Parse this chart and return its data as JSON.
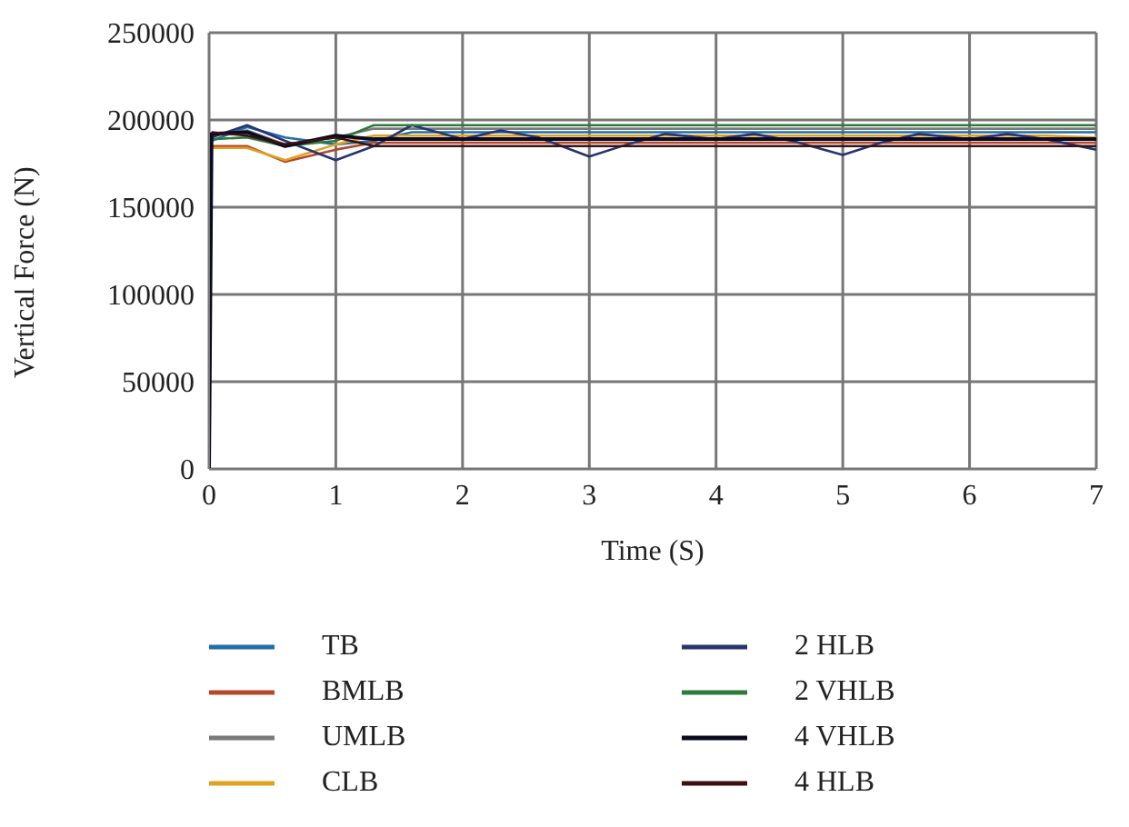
{
  "chart_data": {
    "type": "line",
    "xlabel": "Time (S)",
    "ylabel": "Vertical Force (N)",
    "x": [
      0,
      0.02,
      0.3,
      0.6,
      1.0,
      1.3,
      1.6,
      2.0,
      2.3,
      2.6,
      3.0,
      3.3,
      3.6,
      4.0,
      4.3,
      4.6,
      5.0,
      5.3,
      5.6,
      6.0,
      6.3,
      6.6,
      7.0
    ],
    "series": [
      {
        "name": "TB",
        "color": "#1f6fa8",
        "values": [
          null,
          188000,
          196000,
          190000,
          186000,
          188000,
          193000,
          193000,
          193000,
          193000,
          193000,
          193000,
          193000,
          193000,
          193000,
          193000,
          193000,
          193000,
          193000,
          193000,
          193000,
          193000,
          193000
        ]
      },
      {
        "name": "BMLB",
        "color": "#b5482a",
        "values": [
          null,
          185000,
          185000,
          176000,
          183000,
          187000,
          187000,
          187000,
          187000,
          187000,
          187000,
          187000,
          187000,
          187000,
          187000,
          187000,
          187000,
          187000,
          187000,
          187000,
          187000,
          187000,
          187000
        ]
      },
      {
        "name": "UMLB",
        "color": "#7a7a7a",
        "values": [
          null,
          191000,
          194000,
          186000,
          190000,
          195000,
          195000,
          195000,
          195000,
          195000,
          195000,
          195000,
          195000,
          195000,
          195000,
          195000,
          195000,
          195000,
          195000,
          195000,
          195000,
          195000,
          195000
        ]
      },
      {
        "name": "CLB",
        "color": "#e0a020",
        "values": [
          null,
          184000,
          184000,
          177000,
          186000,
          191000,
          191000,
          191000,
          191000,
          191000,
          191000,
          191000,
          191000,
          191000,
          191000,
          191000,
          191000,
          191000,
          191000,
          191000,
          191000,
          191000,
          190000
        ]
      },
      {
        "name": "2 HLB",
        "color": "#283470",
        "values": [
          0,
          190000,
          197000,
          188000,
          177000,
          185000,
          197000,
          189000,
          194000,
          190000,
          179000,
          186000,
          192000,
          189000,
          192000,
          188000,
          180000,
          187000,
          192000,
          189000,
          192000,
          189000,
          183000
        ]
      },
      {
        "name": "2 VHLB",
        "color": "#2e7a3a",
        "values": [
          null,
          189000,
          190000,
          185000,
          188000,
          197000,
          197000,
          197000,
          197000,
          197000,
          197000,
          197000,
          197000,
          197000,
          197000,
          197000,
          197000,
          197000,
          197000,
          197000,
          197000,
          197000,
          197000
        ]
      },
      {
        "name": "4 VHLB",
        "color": "#0a0a20",
        "values": [
          0,
          192000,
          193000,
          185000,
          191000,
          189000,
          189000,
          189000,
          189000,
          189000,
          189000,
          189000,
          189000,
          189000,
          189000,
          189000,
          189000,
          189000,
          189000,
          189000,
          189000,
          189000,
          189000
        ]
      },
      {
        "name": "4 HLB",
        "color": "#3a1010",
        "values": [
          null,
          193000,
          191000,
          186000,
          190000,
          185000,
          185000,
          185000,
          185000,
          185000,
          185000,
          185000,
          185000,
          185000,
          185000,
          185000,
          185000,
          185000,
          185000,
          185000,
          185000,
          185000,
          185000
        ]
      }
    ],
    "xlim": [
      0,
      7
    ],
    "xticks": [
      0,
      1,
      2,
      3,
      4,
      5,
      6,
      7
    ],
    "ylim": [
      0,
      250000
    ],
    "yticks": [
      0,
      50000,
      100000,
      150000,
      200000,
      250000
    ],
    "grid": true,
    "legend": "bottom",
    "marker": "none",
    "line_style": "solid"
  }
}
